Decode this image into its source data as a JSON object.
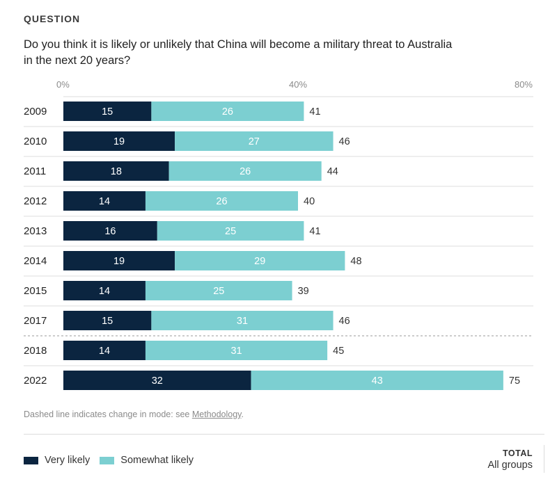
{
  "header": {
    "kicker": "QUESTION",
    "question": "Do you think it is likely or unlikely that China will become a military threat to Australia in the next 20 years?"
  },
  "note": {
    "text": "Dashed line indicates change in mode: see ",
    "link": "Methodology",
    "suffix": "."
  },
  "legend": {
    "very_likely": "Very likely",
    "somewhat_likely": "Somewhat likely"
  },
  "total": {
    "title": "TOTAL",
    "group": "All groups"
  },
  "colors": {
    "very_likely": "#0b2540",
    "somewhat_likely": "#7ccfd1"
  },
  "chart_data": {
    "type": "bar",
    "orientation": "horizontal",
    "stacked": true,
    "categories": [
      "2009",
      "2010",
      "2011",
      "2012",
      "2013",
      "2014",
      "2015",
      "2017",
      "2018",
      "2022"
    ],
    "series": [
      {
        "name": "Very likely",
        "values": [
          15,
          19,
          18,
          14,
          16,
          19,
          14,
          15,
          14,
          32
        ]
      },
      {
        "name": "Somewhat likely",
        "values": [
          26,
          27,
          26,
          26,
          25,
          29,
          25,
          31,
          31,
          43
        ]
      }
    ],
    "totals": [
      41,
      46,
      44,
      40,
      41,
      48,
      39,
      46,
      45,
      75
    ],
    "x_ticks": [
      "0%",
      "40%",
      "80%"
    ],
    "xlim": [
      0,
      80
    ],
    "mode_change_after": "2017",
    "legend_position": "bottom-left"
  }
}
